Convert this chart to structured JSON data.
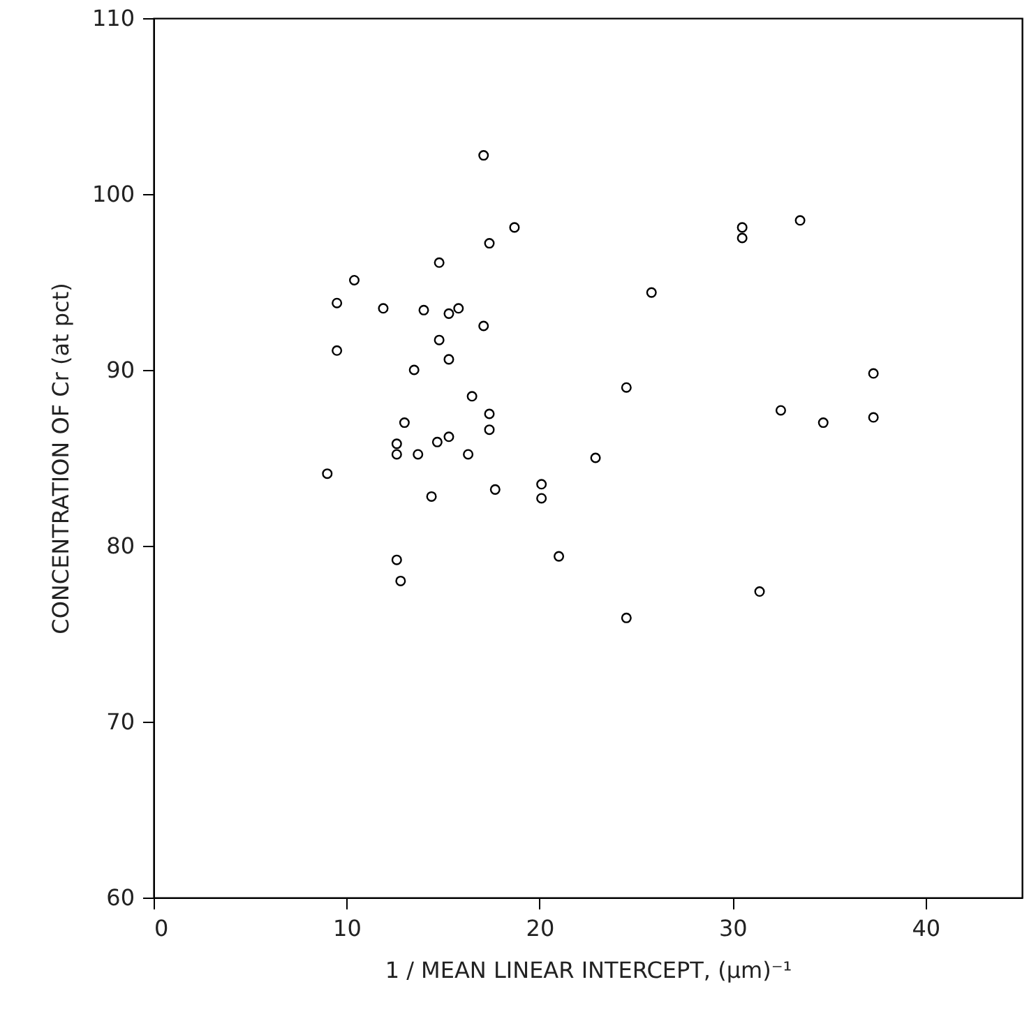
{
  "chart_data": {
    "type": "scatter",
    "xlabel": "1 / MEAN LINEAR INTERCEPT, (μm)⁻¹",
    "ylabel": "CONCENTRATION OF Cr (at pct)",
    "xlim": [
      0,
      45
    ],
    "xticks": [
      0,
      10,
      20,
      30,
      40
    ],
    "ylim": [
      60,
      110
    ],
    "yticks": [
      60,
      70,
      80,
      90,
      100,
      110
    ],
    "grid": false,
    "marker": "circle",
    "series": [
      {
        "color": "#000000",
        "x": [
          17.1,
          18.7,
          17.4,
          14.8,
          10.4,
          9.5,
          11.9,
          14.0,
          15.3,
          15.8,
          17.1,
          14.8,
          9.5,
          15.3,
          13.5,
          16.5,
          17.4,
          17.4,
          13.0,
          12.6,
          12.6,
          13.7,
          14.7,
          15.3,
          16.3,
          9.0,
          14.4,
          17.7,
          20.1,
          20.1,
          22.9,
          12.6,
          12.8,
          21.0,
          24.5,
          30.5,
          30.5,
          33.5,
          25.8,
          24.5,
          37.3,
          37.3,
          32.5,
          34.7,
          31.4
        ],
        "values": [
          102.2,
          98.1,
          97.2,
          96.1,
          95.1,
          93.8,
          93.5,
          93.4,
          93.2,
          93.5,
          92.5,
          91.7,
          91.1,
          90.6,
          90.0,
          88.5,
          87.5,
          86.6,
          87.0,
          85.8,
          85.2,
          85.2,
          85.9,
          86.2,
          85.2,
          84.1,
          82.8,
          83.2,
          83.5,
          82.7,
          85.0,
          79.2,
          78.0,
          79.4,
          75.9,
          98.1,
          97.5,
          98.5,
          94.4,
          89.0,
          89.8,
          87.3,
          87.7,
          87.0,
          77.4
        ]
      }
    ]
  }
}
